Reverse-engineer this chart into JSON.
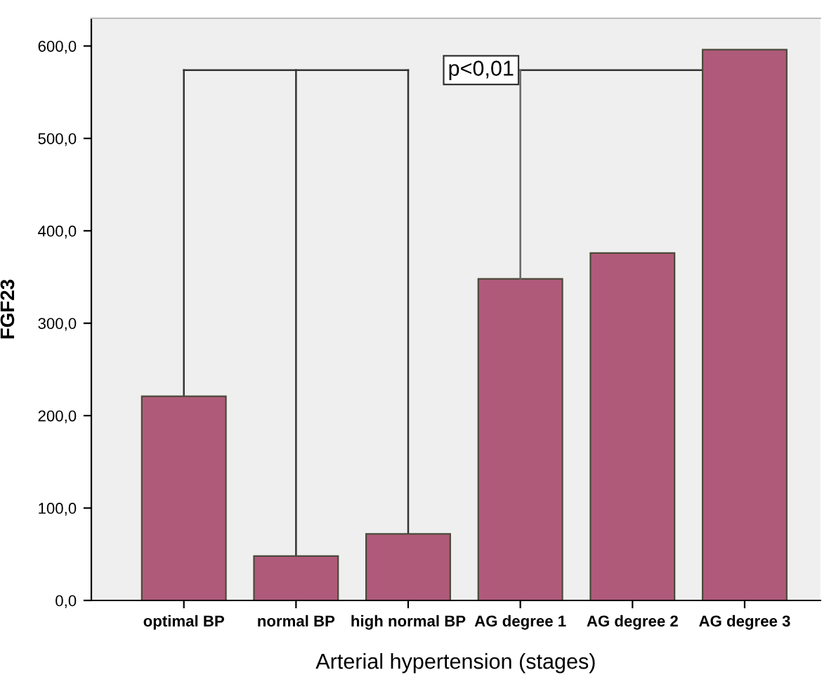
{
  "chart_data": {
    "type": "bar",
    "xlabel": "Arterial hypertension (stages)",
    "ylabel": "FGF23",
    "categories": [
      "optimal BP",
      "normal BP",
      "high normal BP",
      "AG degree 1",
      "AG degree 2",
      "AG degree 3"
    ],
    "values": [
      221,
      48,
      72,
      348,
      376,
      596
    ],
    "color": "#b05a7a",
    "ylim": [
      0,
      630
    ],
    "yticks": [
      {
        "value": 0,
        "label": "0,0"
      },
      {
        "value": 100,
        "label": "100,0"
      },
      {
        "value": 200,
        "label": "200,0"
      },
      {
        "value": 300,
        "label": "300,0"
      },
      {
        "value": 400,
        "label": "400,0"
      },
      {
        "value": 500,
        "label": "500,0"
      },
      {
        "value": 600,
        "label": "600,0"
      }
    ],
    "annotations": [
      {
        "text": "p<0,01",
        "x": "AG degree 1",
        "y": 348
      }
    ]
  }
}
